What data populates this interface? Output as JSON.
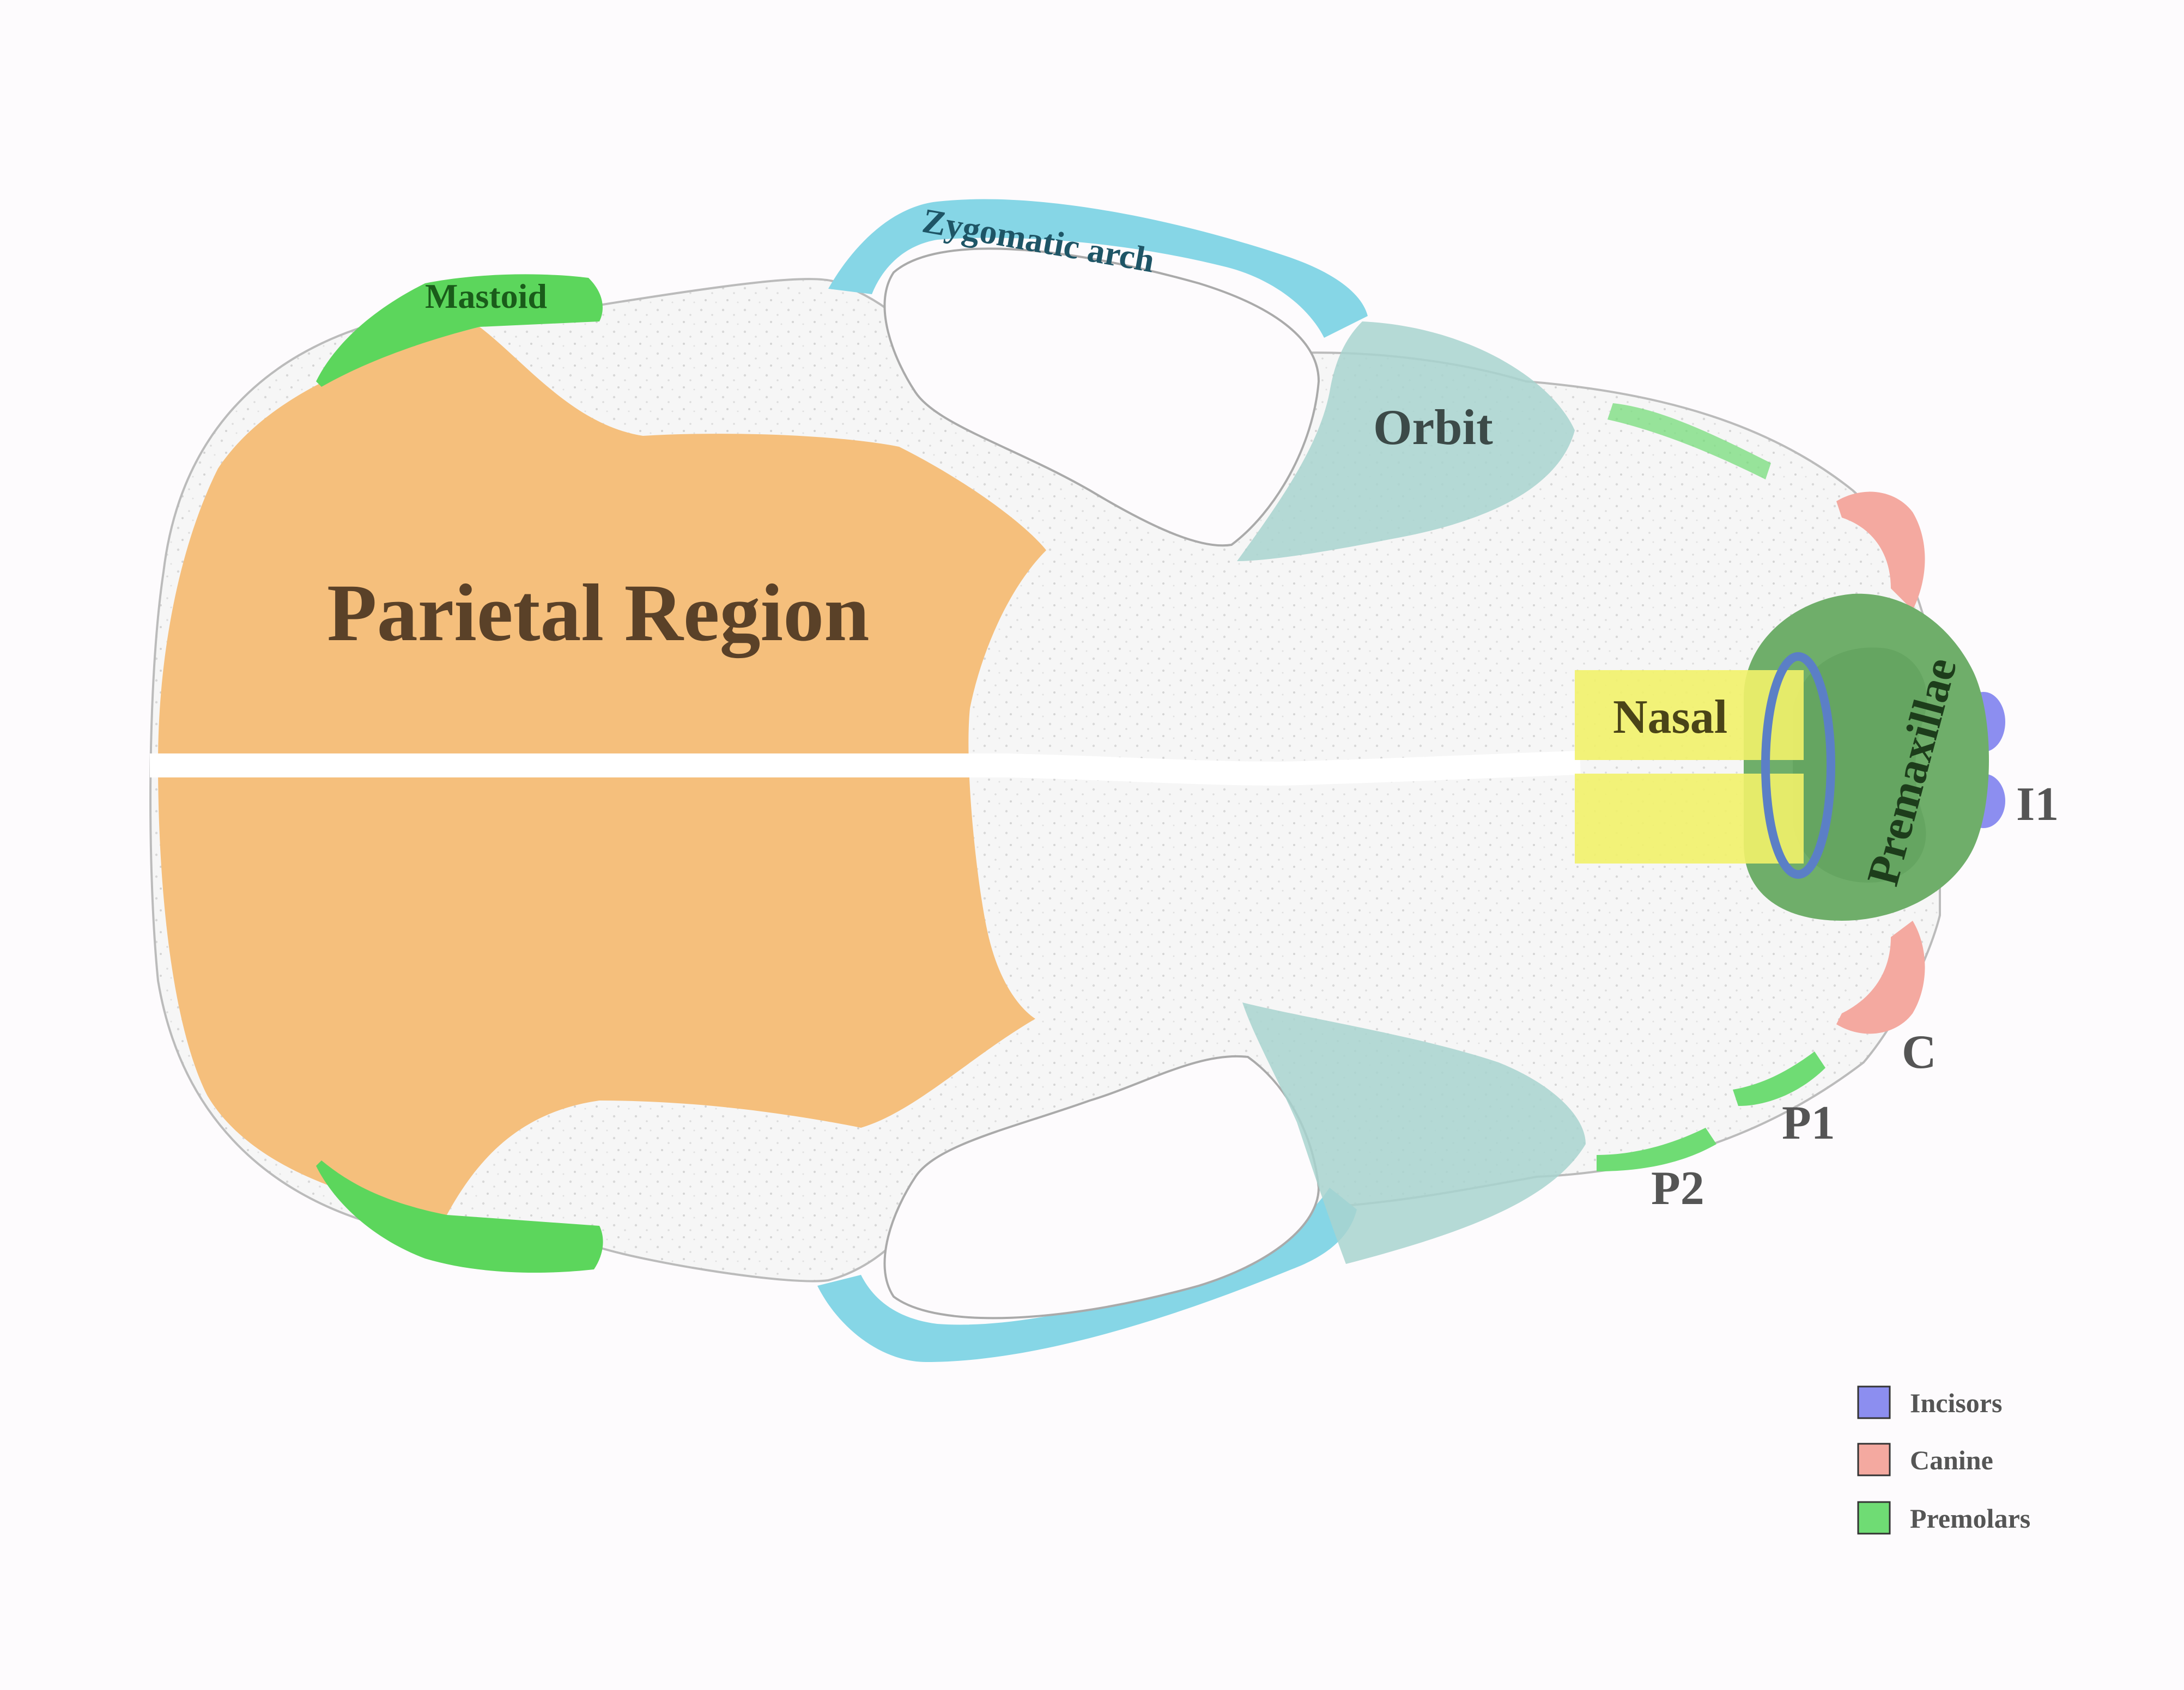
{
  "labels": {
    "parietal": "Parietal Region",
    "mastoid": "Mastoid",
    "zygomatic": "Zygomatic arch",
    "orbit": "Orbit",
    "nasal": "Nasal",
    "premaxillae": "Premaxillae",
    "i1": "I1",
    "c": "C",
    "p1": "P1",
    "p2": "P2"
  },
  "legend": [
    {
      "label": "Incisors",
      "color": "#8c8ef0"
    },
    {
      "label": "Canine",
      "color": "#f4a9a0"
    },
    {
      "label": "Premolars",
      "color": "#6fdc74"
    }
  ],
  "colors": {
    "parietal": "#f5bf7c",
    "mastoid": "#5cd65c",
    "zygomatic": "#86d6e6",
    "orbit": "#a8d4cf",
    "nasal": "#f2f26a",
    "premaxillae": "#6fae6a",
    "skull": "#f3f3f3",
    "marker": "#5b7fc6"
  }
}
